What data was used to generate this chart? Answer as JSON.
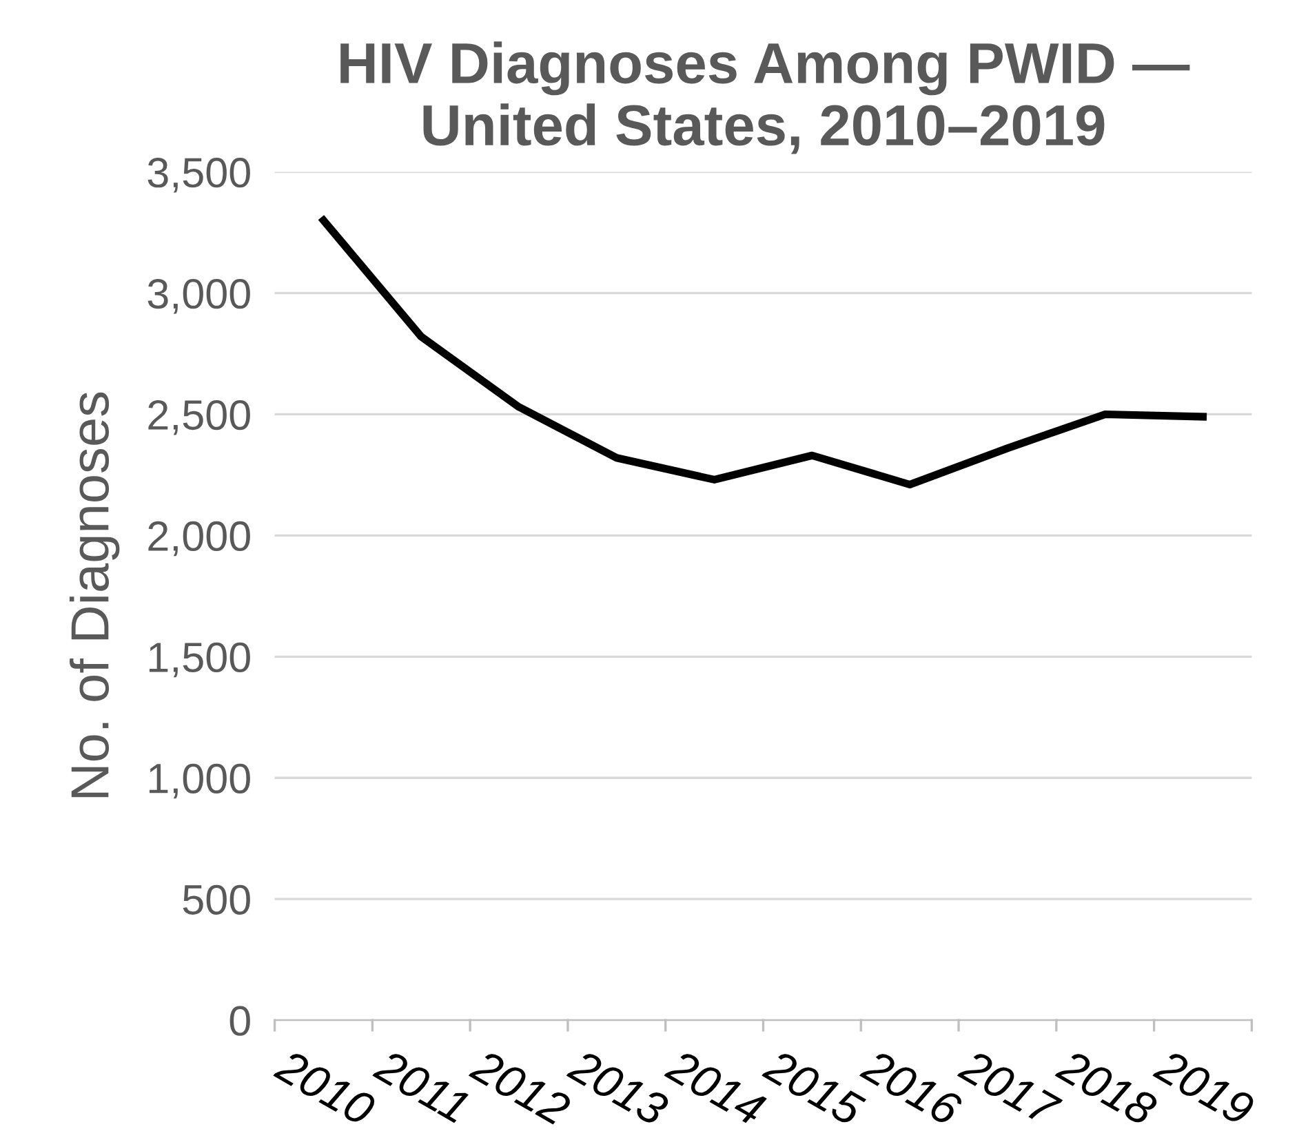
{
  "chart_data": {
    "type": "line",
    "title": "HIV Diagnoses Among PWID —\nUnited States, 2010–2019",
    "ylabel": "No. of Diagnoses",
    "categories": [
      "2010",
      "2011",
      "2012",
      "2013",
      "2014",
      "2015",
      "2016",
      "2017",
      "2018",
      "2019"
    ],
    "series": [
      {
        "color": "#000000",
        "values": [
          3300,
          2820,
          2530,
          2320,
          2230,
          2330,
          2210,
          2360,
          2500,
          2490
        ]
      }
    ],
    "ylim": [
      0,
      3500
    ],
    "yticks": [
      {
        "value": 0,
        "label": "0"
      },
      {
        "value": 500,
        "label": "500"
      },
      {
        "value": 1000,
        "label": "1,000"
      },
      {
        "value": 1500,
        "label": "1,500"
      },
      {
        "value": 2000,
        "label": "2,000"
      },
      {
        "value": 2500,
        "label": "2,500"
      },
      {
        "value": 3000,
        "label": "3,000"
      },
      {
        "value": 3500,
        "label": "3,500"
      }
    ],
    "grid": "y",
    "line_style": "solid",
    "marker": "none"
  }
}
